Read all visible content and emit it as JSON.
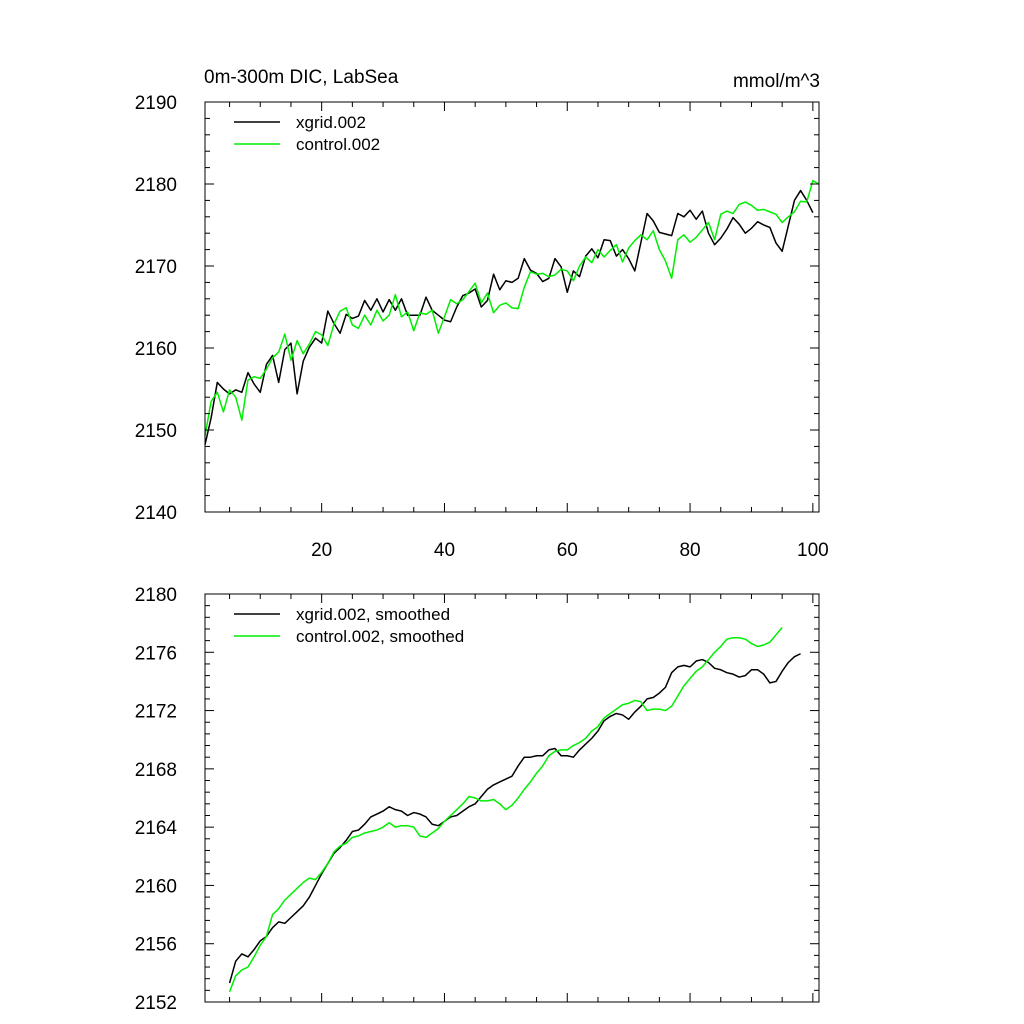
{
  "chart_data": [
    {
      "type": "line",
      "title_left": "0m-300m DIC, LabSea",
      "title_right": "mmol/m^3",
      "xlabel": "",
      "ylabel": "",
      "xlim": [
        1,
        101
      ],
      "ylim": [
        2140,
        2190
      ],
      "x_major_ticks": [
        20,
        40,
        60,
        80,
        100
      ],
      "x_tick_labels": [
        "20",
        "40",
        "60",
        "80",
        "100"
      ],
      "y_major_ticks": [
        2140,
        2150,
        2160,
        2170,
        2180,
        2190
      ],
      "y_tick_labels": [
        "2140",
        "2150",
        "2160",
        "2170",
        "2180",
        "2190"
      ],
      "legend_position": "top-left",
      "series": [
        {
          "name": "xgrid.002",
          "color": "#000000",
          "x_start": 1,
          "values": [
            2148.2,
            2151.5,
            2155.8,
            2155.0,
            2154.4,
            2154.9,
            2154.6,
            2157.0,
            2155.6,
            2154.6,
            2158.0,
            2159.1,
            2155.8,
            2159.8,
            2160.6,
            2154.4,
            2158.4,
            2160.1,
            2161.2,
            2160.6,
            2164.5,
            2163.0,
            2161.8,
            2164.1,
            2163.6,
            2163.9,
            2165.8,
            2164.6,
            2166.0,
            2164.4,
            2165.9,
            2164.6,
            2166.0,
            2164.0,
            2164.0,
            2164.0,
            2166.2,
            2164.6,
            2164.0,
            2163.4,
            2163.2,
            2165.0,
            2166.4,
            2166.7,
            2167.2,
            2165.0,
            2165.8,
            2169.0,
            2167.1,
            2168.2,
            2168.0,
            2168.5,
            2170.9,
            2169.5,
            2169.1,
            2168.1,
            2168.5,
            2170.9,
            2169.9,
            2166.8,
            2169.4,
            2168.7,
            2171.2,
            2172.1,
            2171.0,
            2173.2,
            2173.1,
            2171.2,
            2172.0,
            2170.9,
            2169.4,
            2172.9,
            2176.4,
            2175.5,
            2174.1,
            2173.9,
            2173.7,
            2176.4,
            2176.0,
            2176.8,
            2175.7,
            2176.7,
            2174.0,
            2172.6,
            2173.4,
            2174.5,
            2175.9,
            2175.1,
            2174.0,
            2174.6,
            2175.4,
            2175.0,
            2174.7,
            2172.8,
            2171.8,
            2174.9,
            2178.0,
            2179.2,
            2178.0,
            2176.5
          ]
        },
        {
          "name": "control.002",
          "color": "#00ee00",
          "x_start": 1,
          "values": [
            2149.3,
            2153.5,
            2154.6,
            2152.2,
            2154.9,
            2154.0,
            2151.2,
            2156.1,
            2156.5,
            2156.3,
            2157.4,
            2158.8,
            2159.5,
            2161.7,
            2158.5,
            2160.9,
            2159.3,
            2160.5,
            2162.0,
            2161.6,
            2160.3,
            2162.9,
            2164.5,
            2164.9,
            2162.8,
            2162.4,
            2164.0,
            2162.8,
            2164.6,
            2163.3,
            2164.0,
            2166.5,
            2163.8,
            2164.4,
            2162.1,
            2164.3,
            2164.1,
            2164.6,
            2161.8,
            2163.8,
            2165.9,
            2165.4,
            2165.9,
            2166.9,
            2167.9,
            2165.5,
            2166.7,
            2164.3,
            2165.2,
            2165.5,
            2164.9,
            2164.8,
            2167.4,
            2169.3,
            2169.0,
            2169.1,
            2168.7,
            2168.9,
            2169.6,
            2169.4,
            2168.2,
            2170.0,
            2171.1,
            2170.4,
            2172.0,
            2171.1,
            2171.9,
            2172.6,
            2170.5,
            2172.2,
            2173.1,
            2173.8,
            2173.2,
            2174.3,
            2172.0,
            2170.6,
            2168.5,
            2173.2,
            2173.8,
            2172.9,
            2173.5,
            2174.4,
            2175.3,
            2173.2,
            2176.3,
            2176.7,
            2176.4,
            2177.5,
            2177.8,
            2177.4,
            2176.8,
            2176.9,
            2176.6,
            2176.3,
            2175.3,
            2176.0,
            2176.6,
            2177.9,
            2177.8,
            2180.4,
            2180.0
          ]
        }
      ]
    },
    {
      "type": "line",
      "title": "",
      "xlabel": "",
      "ylabel": "",
      "xlim": [
        1,
        101
      ],
      "ylim": [
        2152,
        2180
      ],
      "x_major_ticks": [
        20,
        40,
        60,
        80,
        100
      ],
      "y_major_ticks": [
        2152,
        2156,
        2160,
        2164,
        2168,
        2172,
        2176,
        2180
      ],
      "y_tick_labels": [
        "2152",
        "2156",
        "2160",
        "2164",
        "2168",
        "2172",
        "2176",
        "2180"
      ],
      "legend_position": "top-left",
      "series": [
        {
          "name": "xgrid.002, smoothed",
          "color": "#000000",
          "x_start": 5,
          "values": [
            2153.3,
            2154.8,
            2155.3,
            2155.1,
            2155.6,
            2156.2,
            2156.5,
            2157.1,
            2157.5,
            2157.4,
            2157.8,
            2158.2,
            2158.6,
            2159.2,
            2160.0,
            2160.8,
            2161.5,
            2162.2,
            2162.6,
            2163.1,
            2163.7,
            2163.8,
            2164.2,
            2164.7,
            2164.9,
            2165.1,
            2165.4,
            2165.2,
            2165.1,
            2164.8,
            2165.0,
            2164.9,
            2164.7,
            2164.2,
            2164.1,
            2164.4,
            2164.7,
            2164.8,
            2165.1,
            2165.4,
            2165.6,
            2166.1,
            2166.6,
            2166.9,
            2167.1,
            2167.3,
            2167.5,
            2168.2,
            2168.8,
            2168.8,
            2168.9,
            2168.9,
            2169.3,
            2169.4,
            2168.9,
            2168.9,
            2168.8,
            2169.3,
            2169.7,
            2170.1,
            2170.6,
            2171.3,
            2171.6,
            2171.8,
            2171.7,
            2171.4,
            2171.9,
            2172.3,
            2172.8,
            2172.9,
            2173.2,
            2173.6,
            2174.6,
            2175.0,
            2175.1,
            2175.0,
            2175.4,
            2175.5,
            2175.3,
            2174.9,
            2174.8,
            2174.6,
            2174.5,
            2174.3,
            2174.4,
            2174.8,
            2174.8,
            2174.5,
            2173.9,
            2174.0,
            2174.7,
            2175.3,
            2175.7,
            2175.9
          ]
        },
        {
          "name": "control.002, smoothed",
          "color": "#00ee00",
          "x_start": 5,
          "values": [
            2152.7,
            2153.8,
            2154.2,
            2154.4,
            2155.1,
            2155.9,
            2156.5,
            2158.0,
            2158.4,
            2159.0,
            2159.4,
            2159.8,
            2160.2,
            2160.5,
            2160.4,
            2160.9,
            2161.5,
            2162.3,
            2162.7,
            2162.9,
            2163.3,
            2163.4,
            2163.6,
            2163.7,
            2163.8,
            2164.0,
            2164.3,
            2164.0,
            2164.1,
            2164.1,
            2164.0,
            2163.4,
            2163.3,
            2163.6,
            2163.9,
            2164.4,
            2164.8,
            2165.2,
            2165.6,
            2166.1,
            2166.0,
            2165.8,
            2165.8,
            2165.9,
            2165.6,
            2165.2,
            2165.5,
            2166.0,
            2166.6,
            2167.1,
            2167.7,
            2168.2,
            2168.9,
            2169.2,
            2169.3,
            2169.3,
            2169.6,
            2169.8,
            2170.1,
            2170.6,
            2170.9,
            2171.5,
            2171.8,
            2172.1,
            2172.4,
            2172.5,
            2172.7,
            2172.6,
            2172.0,
            2172.1,
            2172.1,
            2172.0,
            2172.3,
            2173.0,
            2173.7,
            2174.2,
            2174.7,
            2175.0,
            2175.5,
            2176.0,
            2176.4,
            2176.9,
            2177.0,
            2177.0,
            2176.9,
            2176.6,
            2176.4,
            2176.5,
            2176.7,
            2177.2,
            2177.7
          ]
        }
      ]
    }
  ]
}
